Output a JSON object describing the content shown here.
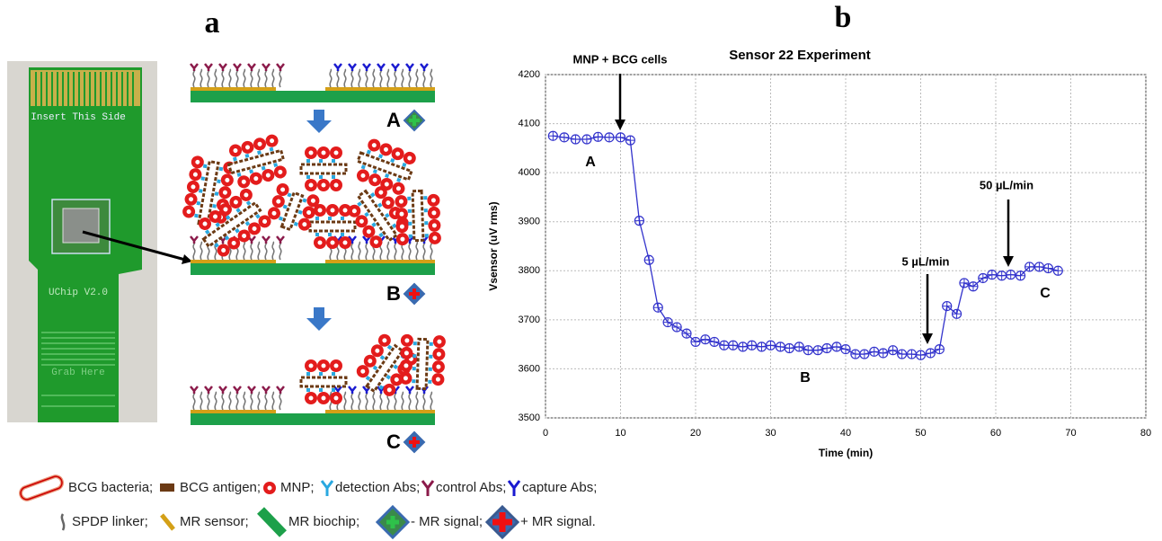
{
  "panel_labels": [
    "a",
    "b"
  ],
  "photo": {
    "texts": [
      "Insert This Side",
      "UChip V2.0",
      "Grab Here"
    ]
  },
  "diagram": {
    "states": [
      "A",
      "B",
      "C"
    ]
  },
  "chart_data": {
    "type": "line",
    "title": "Sensor 22 Experiment",
    "x_label": "Time (min)",
    "y_label": "Vsensor (uV rms)",
    "color": "#3333cc",
    "grid": true,
    "xlim": [
      0,
      80
    ],
    "xticks": [
      0,
      10,
      20,
      30,
      40,
      50,
      60,
      70,
      80
    ],
    "ylim": [
      3500,
      4200
    ],
    "yticks": [
      3500,
      3600,
      3700,
      3800,
      3900,
      4000,
      4100,
      4200
    ],
    "x": [
      1,
      2.5,
      4,
      5.5,
      7,
      8.5,
      10,
      11.3,
      12.5,
      13.8,
      15,
      16.3,
      17.5,
      18.8,
      20,
      21.3,
      22.5,
      23.8,
      25,
      26.3,
      27.5,
      28.8,
      30,
      31.3,
      32.5,
      33.8,
      35,
      36.3,
      37.5,
      38.8,
      40,
      41.3,
      42.5,
      43.8,
      45,
      46.3,
      47.5,
      48.8,
      50,
      51.3,
      52.5,
      53.5,
      54.8,
      55.8,
      57,
      58.3,
      59.5,
      60.8,
      62,
      63.3,
      64.5,
      65.8,
      67,
      68.3
    ],
    "values": [
      4075,
      4072,
      4068,
      4068,
      4073,
      4072,
      4072,
      4066,
      3902,
      3822,
      3725,
      3695,
      3685,
      3672,
      3655,
      3660,
      3655,
      3648,
      3648,
      3645,
      3648,
      3645,
      3648,
      3645,
      3642,
      3645,
      3638,
      3638,
      3642,
      3645,
      3640,
      3630,
      3630,
      3635,
      3632,
      3638,
      3630,
      3630,
      3628,
      3632,
      3640,
      3728,
      3712,
      3775,
      3768,
      3785,
      3792,
      3790,
      3792,
      3790,
      3808,
      3808,
      3805,
      3800
    ],
    "annotations": [
      "MNP + BCG cells",
      "A",
      "B",
      "C",
      "5 µL/min",
      "50 µL/min"
    ]
  },
  "legend": {
    "items": [
      "BCG bacteria;",
      "BCG antigen;",
      "MNP;",
      "detection Abs;",
      "control Abs;",
      "capture Abs;",
      "SPDP linker;",
      "MR sensor;",
      "MR biochip;",
      "- MR signal;",
      "+ MR signal."
    ]
  }
}
